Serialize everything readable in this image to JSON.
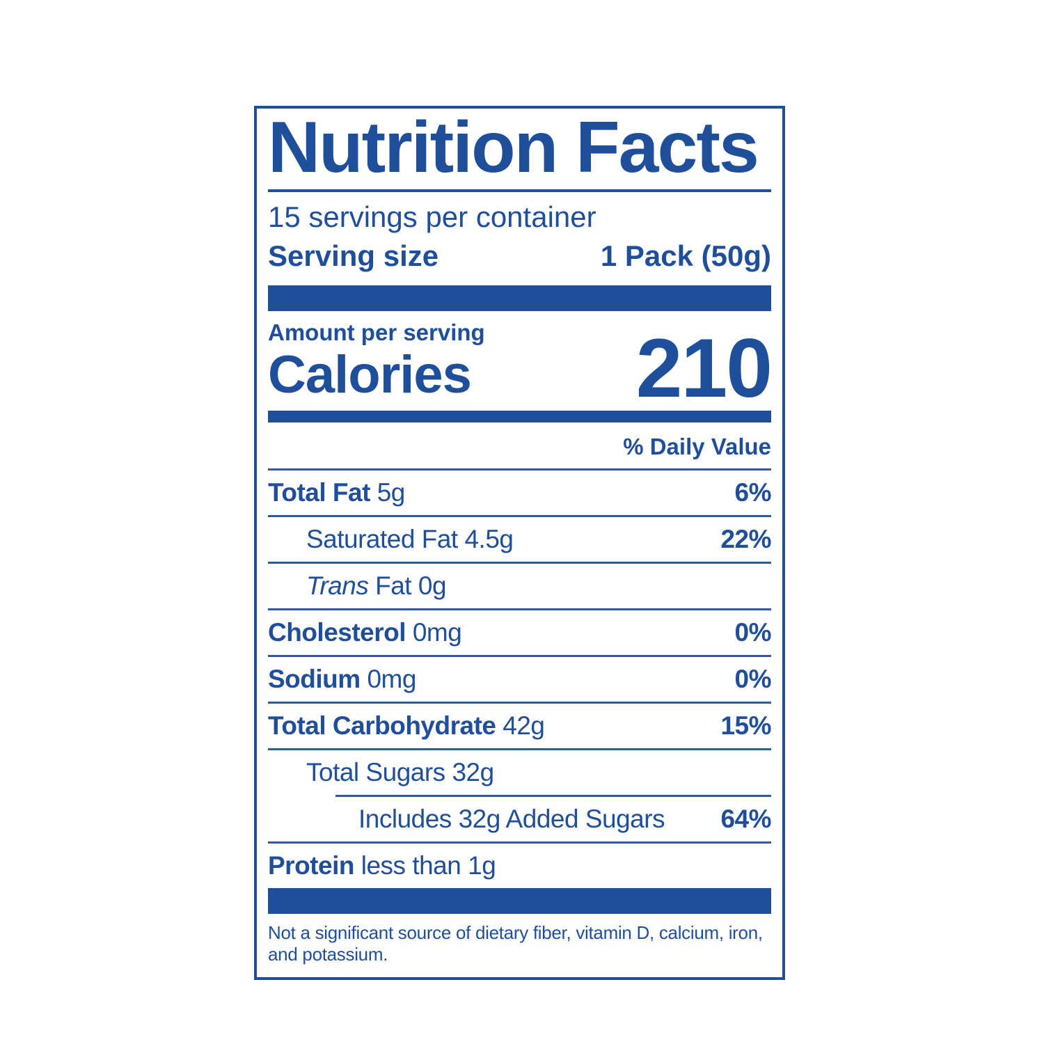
{
  "label": {
    "title": "Nutrition Facts",
    "servings_per_container": "15 servings per container",
    "serving_size_label": "Serving size",
    "serving_size_value": "1 Pack (50g)",
    "amount_per_serving": "Amount per serving",
    "calories_label": "Calories",
    "calories_value": "210",
    "daily_value_header": "% Daily Value",
    "rows": [
      {
        "id": "total-fat",
        "indent": 0,
        "separator": "full",
        "segments": [
          {
            "text": "Total Fat",
            "bold": true
          },
          {
            "text": " 5g"
          }
        ],
        "daily_value": "6%"
      },
      {
        "id": "saturated-fat",
        "indent": 1,
        "separator": "full",
        "segments": [
          {
            "text": "Saturated Fat 4.5g"
          }
        ],
        "daily_value": "22%"
      },
      {
        "id": "trans-fat",
        "indent": 1,
        "separator": "full",
        "segments": [
          {
            "text": "Trans",
            "italic": true
          },
          {
            "text": " Fat 0g"
          }
        ],
        "daily_value": ""
      },
      {
        "id": "cholesterol",
        "indent": 0,
        "separator": "full",
        "segments": [
          {
            "text": "Cholesterol",
            "bold": true
          },
          {
            "text": " 0mg"
          }
        ],
        "daily_value": "0%"
      },
      {
        "id": "sodium",
        "indent": 0,
        "separator": "full",
        "segments": [
          {
            "text": "Sodium",
            "bold": true
          },
          {
            "text": " 0mg"
          }
        ],
        "daily_value": "0%"
      },
      {
        "id": "total-carbohydrate",
        "indent": 0,
        "separator": "full",
        "segments": [
          {
            "text": "Total Carbohydrate",
            "bold": true
          },
          {
            "text": " 42g"
          }
        ],
        "daily_value": "15%"
      },
      {
        "id": "total-sugars",
        "indent": 1,
        "separator": "indent",
        "segments": [
          {
            "text": "Total Sugars 32g"
          }
        ],
        "daily_value": ""
      },
      {
        "id": "added-sugars",
        "indent": 2,
        "separator": "full",
        "segments": [
          {
            "text": "Includes 32g Added Sugars"
          }
        ],
        "daily_value": "64%"
      },
      {
        "id": "protein",
        "indent": 0,
        "separator": "none",
        "segments": [
          {
            "text": "Protein",
            "bold": true
          },
          {
            "text": " less than 1g"
          }
        ],
        "daily_value": ""
      }
    ],
    "footnote": "Not a significant source of dietary fiber, vitamin D, calcium, iron, and potassium.",
    "colors": {
      "blue": "#1F4E9B",
      "background": "#FFFFFF"
    }
  }
}
